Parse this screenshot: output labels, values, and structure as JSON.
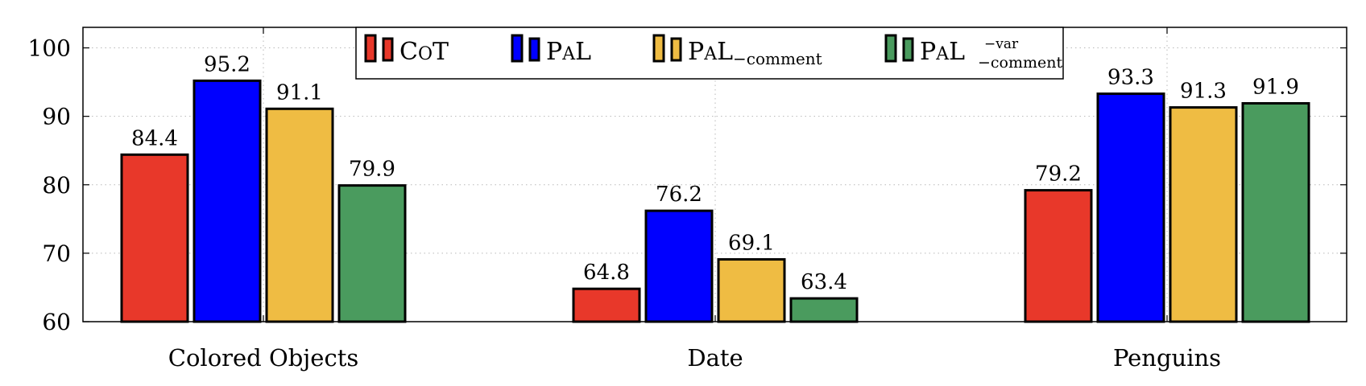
{
  "chart_data": {
    "type": "bar",
    "title": "",
    "xlabel": "",
    "ylabel": "",
    "categories": [
      "Colored Objects",
      "Date",
      "Penguins"
    ],
    "ylim": [
      60,
      103
    ],
    "yticks": [
      60,
      70,
      80,
      90,
      100
    ],
    "grid": true,
    "legend_position": "top-center",
    "series": [
      {
        "name": "CoT",
        "color": "#e8382a",
        "values": [
          84.4,
          64.8,
          79.2
        ]
      },
      {
        "name": "PaL",
        "color": "#0000ff",
        "values": [
          95.2,
          76.2,
          93.3
        ]
      },
      {
        "name": "PaL−comment",
        "color": "#efbc43",
        "values": [
          91.1,
          69.1,
          91.3
        ]
      },
      {
        "name": "PaL−var−comment",
        "color": "#4a9b5e",
        "values": [
          79.9,
          63.4,
          91.9
        ]
      }
    ]
  }
}
